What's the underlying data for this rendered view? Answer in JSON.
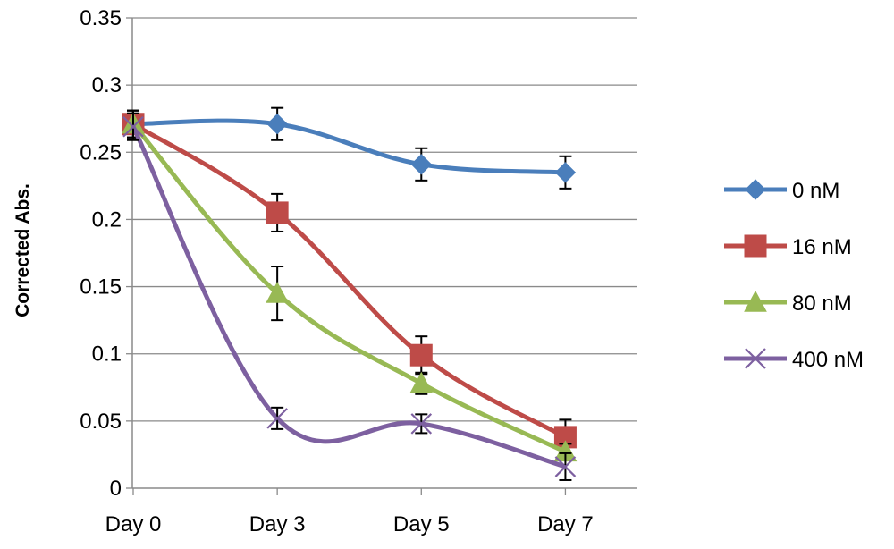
{
  "chart_data": {
    "type": "line",
    "title": "",
    "xlabel": "",
    "ylabel": "Corrected Abs.",
    "categories": [
      "Day 0",
      "Day 3",
      "Day 5",
      "Day 7"
    ],
    "ylim": [
      0,
      0.35
    ],
    "yticks": [
      "0",
      "0.05",
      "0.1",
      "0.15",
      "0.2",
      "0.25",
      "0.3",
      "0.35"
    ],
    "grid": "horizontal",
    "legend_position": "right",
    "series": [
      {
        "name": "0 nM",
        "color": "#4A7EBB",
        "marker": "diamond",
        "values": [
          0.271,
          0.271,
          0.241,
          0.235
        ],
        "errors": [
          0.01,
          0.012,
          0.012,
          0.012
        ]
      },
      {
        "name": "16 nM",
        "color": "#BE4B48",
        "marker": "square",
        "values": [
          0.271,
          0.205,
          0.099,
          0.038
        ],
        "errors": [
          0.01,
          0.014,
          0.014,
          0.013
        ]
      },
      {
        "name": "80 nM",
        "color": "#98B954",
        "marker": "triangle",
        "values": [
          0.271,
          0.145,
          0.078,
          0.027
        ],
        "errors": [
          0.01,
          0.02,
          0.008,
          0.006
        ]
      },
      {
        "name": "400 nM",
        "color": "#7D60A0",
        "marker": "x",
        "values": [
          0.269,
          0.052,
          0.048,
          0.016
        ],
        "errors": [
          0.01,
          0.008,
          0.007,
          0.01
        ]
      }
    ]
  }
}
